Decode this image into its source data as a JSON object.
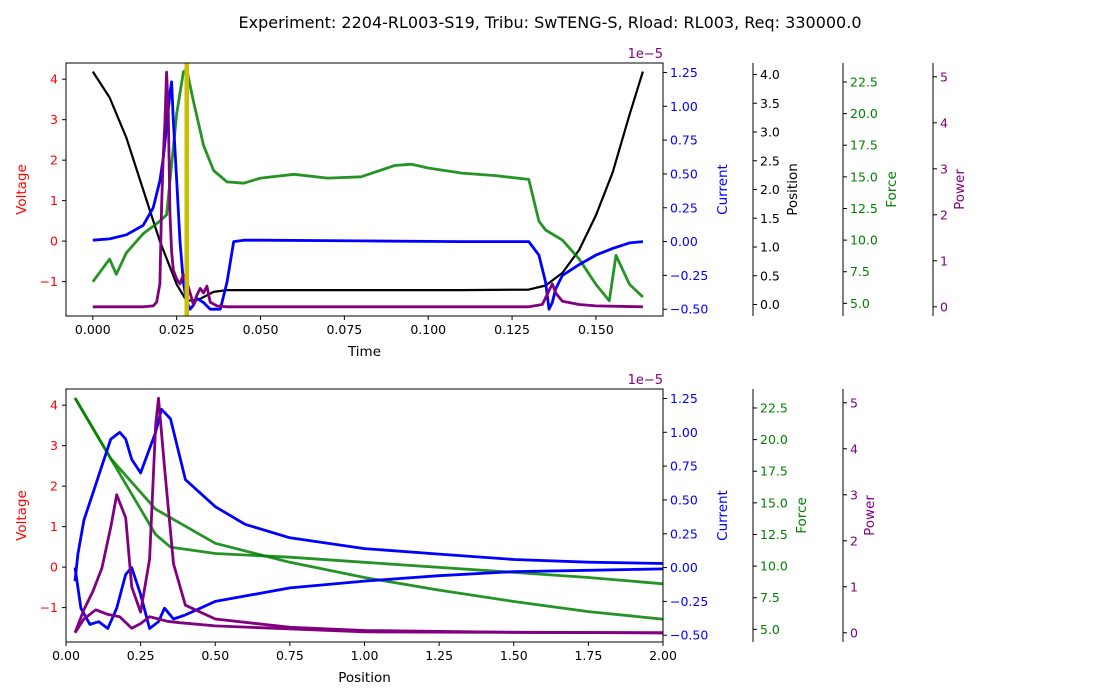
{
  "chart_data": {
    "title": "Experiment: 2204-RL003-S19, Tribu: SwTENG-S, Rload: RL003, Req: 330000.0",
    "colors": {
      "voltage": "#ff0000",
      "current": "#0000ff",
      "current_overlay": "#5a10d0",
      "position": "#000000",
      "force": "#008000",
      "power": "#800080",
      "marker": "#c8c000"
    },
    "panels": [
      {
        "type": "line",
        "xlabel": "Time",
        "x_ticks": [
          "0.000",
          "0.025",
          "0.050",
          "0.075",
          "0.100",
          "0.125",
          "0.150"
        ],
        "xlim": [
          -0.008,
          0.17
        ],
        "marker_x": 0.028,
        "axes": [
          {
            "key": "voltage",
            "label": "Voltage",
            "ylim": [
              -1.85,
              4.4
            ],
            "ticks": [
              "−1",
              "0",
              "1",
              "2",
              "3",
              "4"
            ]
          },
          {
            "key": "current",
            "label": "Current",
            "exponent": "1e−5",
            "ylim": [
              -0.55,
              1.32
            ],
            "ticks": [
              "−0.50",
              "−0.25",
              "0.00",
              "0.25",
              "0.50",
              "0.75",
              "1.00",
              "1.25"
            ]
          },
          {
            "key": "position",
            "label": "Position",
            "ylim": [
              -0.2,
              4.2
            ],
            "ticks": [
              "0.0",
              "0.5",
              "1.0",
              "1.5",
              "2.0",
              "2.5",
              "3.0",
              "3.5",
              "4.0"
            ]
          },
          {
            "key": "force",
            "label": "Force",
            "ylim": [
              4.0,
              24.0
            ],
            "ticks": [
              "5.0",
              "7.5",
              "10.0",
              "12.5",
              "15.0",
              "17.5",
              "20.0",
              "22.5"
            ]
          },
          {
            "key": "power",
            "label": "Power",
            "ylim": [
              -0.2,
              5.3
            ],
            "ticks": [
              "0",
              "1",
              "2",
              "3",
              "4",
              "5"
            ]
          }
        ],
        "series": [
          {
            "axis": "position",
            "x": [
              0,
              0.005,
              0.01,
              0.015,
              0.02,
              0.025,
              0.028,
              0.032,
              0.036,
              0.04,
              0.05,
              0.08,
              0.11,
              0.13,
              0.135,
              0.14,
              0.145,
              0.15,
              0.155,
              0.16,
              0.164
            ],
            "y": [
              4.05,
              3.6,
              2.9,
              2.0,
              1.1,
              0.35,
              0.06,
              0.1,
              0.22,
              0.25,
              0.25,
              0.25,
              0.25,
              0.26,
              0.33,
              0.55,
              0.95,
              1.55,
              2.3,
              3.3,
              4.05
            ]
          },
          {
            "axis": "force",
            "x": [
              0,
              0.005,
              0.007,
              0.01,
              0.015,
              0.02,
              0.022,
              0.025,
              0.027,
              0.028,
              0.03,
              0.033,
              0.036,
              0.04,
              0.045,
              0.05,
              0.06,
              0.07,
              0.08,
              0.09,
              0.095,
              0.1,
              0.11,
              0.12,
              0.13,
              0.133,
              0.135,
              0.14,
              0.145,
              0.15,
              0.154,
              0.156,
              0.16,
              0.164
            ],
            "y": [
              6.7,
              8.5,
              7.3,
              9.0,
              10.5,
              11.5,
              12.0,
              20.0,
              23.3,
              23.5,
              21.0,
              17.5,
              15.5,
              14.6,
              14.5,
              14.9,
              15.2,
              14.9,
              15.0,
              15.9,
              16.0,
              15.7,
              15.3,
              15.1,
              14.8,
              11.5,
              10.8,
              10.0,
              8.5,
              6.5,
              5.2,
              8.8,
              6.5,
              5.5
            ]
          },
          {
            "axis": "current",
            "x": [
              0,
              0.005,
              0.01,
              0.015,
              0.018,
              0.02,
              0.021,
              0.022,
              0.023,
              0.0235,
              0.024,
              0.025,
              0.026,
              0.027,
              0.028,
              0.029,
              0.03,
              0.031,
              0.033,
              0.035,
              0.038,
              0.04,
              0.042,
              0.045,
              0.05,
              0.08,
              0.11,
              0.13,
              0.133,
              0.135,
              0.136,
              0.137,
              0.138,
              0.14,
              0.145,
              0.15,
              0.155,
              0.16,
              0.164
            ],
            "y": [
              0.01,
              0.02,
              0.05,
              0.12,
              0.25,
              0.45,
              0.62,
              0.85,
              1.1,
              1.18,
              0.9,
              0.45,
              0.0,
              -0.3,
              -0.45,
              -0.5,
              -0.47,
              -0.42,
              -0.45,
              -0.5,
              -0.5,
              -0.3,
              0.0,
              0.01,
              0.01,
              0.005,
              0.0,
              0.0,
              -0.1,
              -0.3,
              -0.5,
              -0.45,
              -0.35,
              -0.25,
              -0.17,
              -0.1,
              -0.05,
              -0.01,
              0.0
            ]
          },
          {
            "axis": "power",
            "x": [
              0,
              0.01,
              0.015,
              0.018,
              0.019,
              0.02,
              0.0205,
              0.021,
              0.0215,
              0.022,
              0.0225,
              0.023,
              0.0235,
              0.024,
              0.025,
              0.026,
              0.027,
              0.028,
              0.029,
              0.03,
              0.031,
              0.032,
              0.033,
              0.034,
              0.035,
              0.037,
              0.04,
              0.08,
              0.13,
              0.134,
              0.136,
              0.137,
              0.138,
              0.14,
              0.145,
              0.15,
              0.164
            ],
            "y": [
              0,
              0,
              0,
              0.02,
              0.1,
              0.5,
              2.2,
              3.3,
              4.0,
              5.1,
              4.2,
              2.0,
              1.2,
              0.8,
              0.6,
              0.5,
              0.7,
              0.55,
              0.3,
              0.05,
              0.25,
              0.4,
              0.3,
              0.45,
              0.1,
              0.02,
              0.0,
              0.0,
              0.0,
              0.05,
              0.35,
              0.5,
              0.3,
              0.12,
              0.05,
              0.02,
              0.0
            ]
          }
        ]
      },
      {
        "type": "line",
        "xlabel": "Position",
        "x_ticks": [
          "0.00",
          "0.25",
          "0.50",
          "0.75",
          "1.00",
          "1.25",
          "1.50",
          "1.75",
          "2.00"
        ],
        "xlim": [
          0,
          2.0
        ],
        "axes": [
          {
            "key": "voltage",
            "label": "Voltage",
            "ylim": [
              -1.85,
              4.4
            ],
            "ticks": [
              "−1",
              "0",
              "1",
              "2",
              "3",
              "4"
            ]
          },
          {
            "key": "current",
            "label": "Current",
            "exponent": "1e−5",
            "ylim": [
              -0.55,
              1.32
            ],
            "ticks": [
              "−0.50",
              "−0.25",
              "0.00",
              "0.25",
              "0.50",
              "0.75",
              "1.00",
              "1.25"
            ]
          },
          {
            "key": "force",
            "label": "Force",
            "ylim": [
              4.0,
              24.0
            ],
            "ticks": [
              "5.0",
              "7.5",
              "10.0",
              "12.5",
              "15.0",
              "17.5",
              "20.0",
              "22.5"
            ]
          },
          {
            "key": "power",
            "label": "Power",
            "ylim": [
              -0.2,
              5.3
            ],
            "ticks": [
              "0",
              "1",
              "2",
              "3",
              "4",
              "5"
            ]
          }
        ],
        "series": [
          {
            "axis": "force",
            "x": [
              0.03,
              0.1,
              0.2,
              0.3,
              0.35,
              0.5,
              0.75,
              1.0,
              1.25,
              1.5,
              1.75,
              2.0
            ],
            "y": [
              23.3,
              20.5,
              16.5,
              12.5,
              11.5,
              11.0,
              10.7,
              10.3,
              9.9,
              9.5,
              9.1,
              8.6
            ]
          },
          {
            "axis": "force",
            "x": [
              0.03,
              0.15,
              0.3,
              0.5,
              0.75,
              1.0,
              1.25,
              1.5,
              1.75,
              2.0
            ],
            "y": [
              23.3,
              18.5,
              14.5,
              11.8,
              10.3,
              9.1,
              8.1,
              7.2,
              6.4,
              5.8
            ]
          },
          {
            "axis": "current",
            "x": [
              0.03,
              0.04,
              0.06,
              0.09,
              0.12,
              0.15,
              0.18,
              0.2,
              0.22,
              0.25,
              0.3,
              0.32,
              0.35,
              0.4,
              0.5,
              0.6,
              0.75,
              1.0,
              1.25,
              1.5,
              1.75,
              2.0
            ],
            "y": [
              -0.1,
              0.1,
              0.35,
              0.55,
              0.75,
              0.95,
              1.0,
              0.95,
              0.8,
              0.7,
              1.0,
              1.17,
              1.1,
              0.65,
              0.45,
              0.32,
              0.22,
              0.14,
              0.1,
              0.06,
              0.04,
              0.03
            ]
          },
          {
            "axis": "current",
            "x": [
              0.03,
              0.05,
              0.08,
              0.11,
              0.14,
              0.17,
              0.2,
              0.22,
              0.25,
              0.28,
              0.31,
              0.33,
              0.36,
              0.4,
              0.45,
              0.5,
              0.75,
              1.0,
              1.25,
              1.5,
              1.75,
              2.0
            ],
            "y": [
              0.0,
              -0.3,
              -0.42,
              -0.4,
              -0.45,
              -0.3,
              -0.05,
              0.0,
              -0.2,
              -0.45,
              -0.4,
              -0.3,
              -0.38,
              -0.35,
              -0.3,
              -0.25,
              -0.15,
              -0.1,
              -0.06,
              -0.03,
              -0.02,
              -0.01
            ]
          },
          {
            "axis": "power",
            "x": [
              0.03,
              0.06,
              0.09,
              0.12,
              0.15,
              0.17,
              0.2,
              0.22,
              0.25,
              0.28,
              0.3,
              0.31,
              0.33,
              0.36,
              0.4,
              0.5,
              0.75,
              1.0,
              1.5,
              2.0
            ],
            "y": [
              0.0,
              0.5,
              0.9,
              1.4,
              2.3,
              3.0,
              2.5,
              1.0,
              0.45,
              1.6,
              4.5,
              5.1,
              3.6,
              1.5,
              0.6,
              0.3,
              0.12,
              0.05,
              0.01,
              0.0
            ]
          },
          {
            "axis": "power",
            "x": [
              0.03,
              0.06,
              0.1,
              0.14,
              0.18,
              0.22,
              0.25,
              0.28,
              0.31,
              0.34,
              0.38,
              0.5,
              1.0,
              2.0
            ],
            "y": [
              0.0,
              0.3,
              0.5,
              0.4,
              0.35,
              0.1,
              0.2,
              0.35,
              0.3,
              0.25,
              0.22,
              0.15,
              0.02,
              0.0
            ]
          }
        ]
      }
    ]
  }
}
